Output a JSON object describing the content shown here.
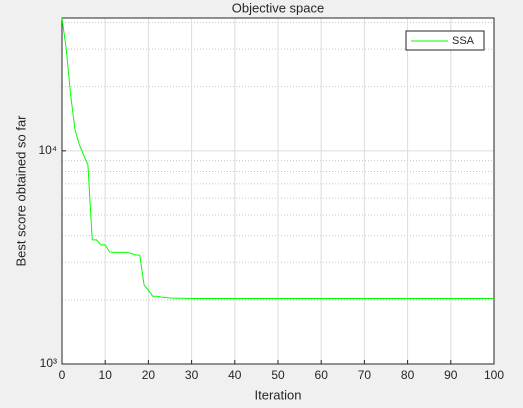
{
  "chart_data": {
    "type": "line",
    "title": "Objective space",
    "x_label": "Iteration",
    "y_label": "Best score obtained so far",
    "x": [
      0,
      1,
      2,
      3,
      4,
      5,
      6,
      7,
      8,
      9,
      10,
      11,
      12,
      13,
      14,
      15,
      16,
      17,
      18,
      19,
      20,
      21,
      22,
      23,
      24,
      25,
      30,
      40,
      50,
      60,
      70,
      80,
      90,
      100
    ],
    "series": [
      {
        "name": "SSA",
        "color": "#00ff00",
        "values": [
          42000,
          29800,
          18300,
          12600,
          10700,
          9580,
          8590,
          3820,
          3820,
          3620,
          3620,
          3360,
          3340,
          3340,
          3340,
          3340,
          3300,
          3250,
          3240,
          2350,
          2220,
          2080,
          2080,
          2060,
          2050,
          2040,
          2030,
          2030,
          2030,
          2030,
          2030,
          2030,
          2030,
          2030
        ]
      }
    ],
    "xlim": [
      0,
      100
    ],
    "xticks": [
      0,
      10,
      20,
      30,
      40,
      50,
      60,
      70,
      80,
      90,
      100
    ],
    "ylim": [
      1000,
      42000
    ],
    "log_y": true,
    "yticks": [
      {
        "value": 1000,
        "label": "10³"
      },
      {
        "value": 10000,
        "label": "10⁴"
      }
    ],
    "yminorticks": [
      2000,
      3000,
      4000,
      5000,
      6000,
      7000,
      8000,
      9000,
      20000,
      30000,
      40000
    ],
    "grid": true,
    "legend": "top-right"
  }
}
